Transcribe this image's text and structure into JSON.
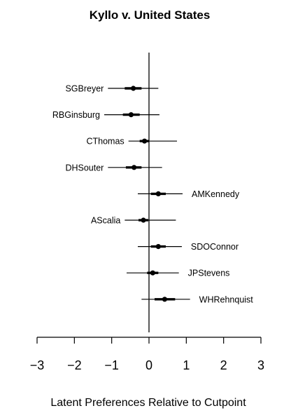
{
  "chart_data": {
    "type": "interval",
    "title": "Kyllo v. United States",
    "xlabel": "Latent Preferences Relative to Cutpoint",
    "ylabel": "",
    "xlim": [
      -3,
      3
    ],
    "xticks": [
      -3,
      -2,
      -1,
      0,
      1,
      2,
      3
    ],
    "xtick_labels": [
      "−3",
      "−2",
      "−1",
      "0",
      "1",
      "2",
      "3"
    ],
    "reference_line": 0,
    "grid": false,
    "justices": [
      {
        "name": "SGBreyer",
        "estimate": -0.42,
        "inner": [
          -0.65,
          -0.2
        ],
        "outer": [
          -1.1,
          0.25
        ],
        "label_side": "left"
      },
      {
        "name": "RBGinsburg",
        "estimate": -0.48,
        "inner": [
          -0.7,
          -0.25
        ],
        "outer": [
          -1.2,
          0.28
        ],
        "label_side": "left"
      },
      {
        "name": "CThomas",
        "estimate": -0.12,
        "inner": [
          -0.25,
          0.0
        ],
        "outer": [
          -0.55,
          0.75
        ],
        "label_side": "left"
      },
      {
        "name": "DHSouter",
        "estimate": -0.4,
        "inner": [
          -0.62,
          -0.2
        ],
        "outer": [
          -1.1,
          0.35
        ],
        "label_side": "left"
      },
      {
        "name": "AMKennedy",
        "estimate": 0.25,
        "inner": [
          0.05,
          0.45
        ],
        "outer": [
          -0.3,
          0.9
        ],
        "label_side": "right"
      },
      {
        "name": "AScalia",
        "estimate": -0.15,
        "inner": [
          -0.28,
          -0.02
        ],
        "outer": [
          -0.65,
          0.72
        ],
        "label_side": "left"
      },
      {
        "name": "SDOConnor",
        "estimate": 0.25,
        "inner": [
          0.05,
          0.45
        ],
        "outer": [
          -0.3,
          0.88
        ],
        "label_side": "right"
      },
      {
        "name": "JPStevens",
        "estimate": 0.1,
        "inner": [
          -0.05,
          0.25
        ],
        "outer": [
          -0.6,
          0.8
        ],
        "label_side": "right"
      },
      {
        "name": "WHRehnquist",
        "estimate": 0.42,
        "inner": [
          0.15,
          0.7
        ],
        "outer": [
          -0.2,
          1.1
        ],
        "label_side": "right"
      }
    ],
    "colors": {
      "marks": "#000000",
      "background": "#ffffff"
    }
  }
}
